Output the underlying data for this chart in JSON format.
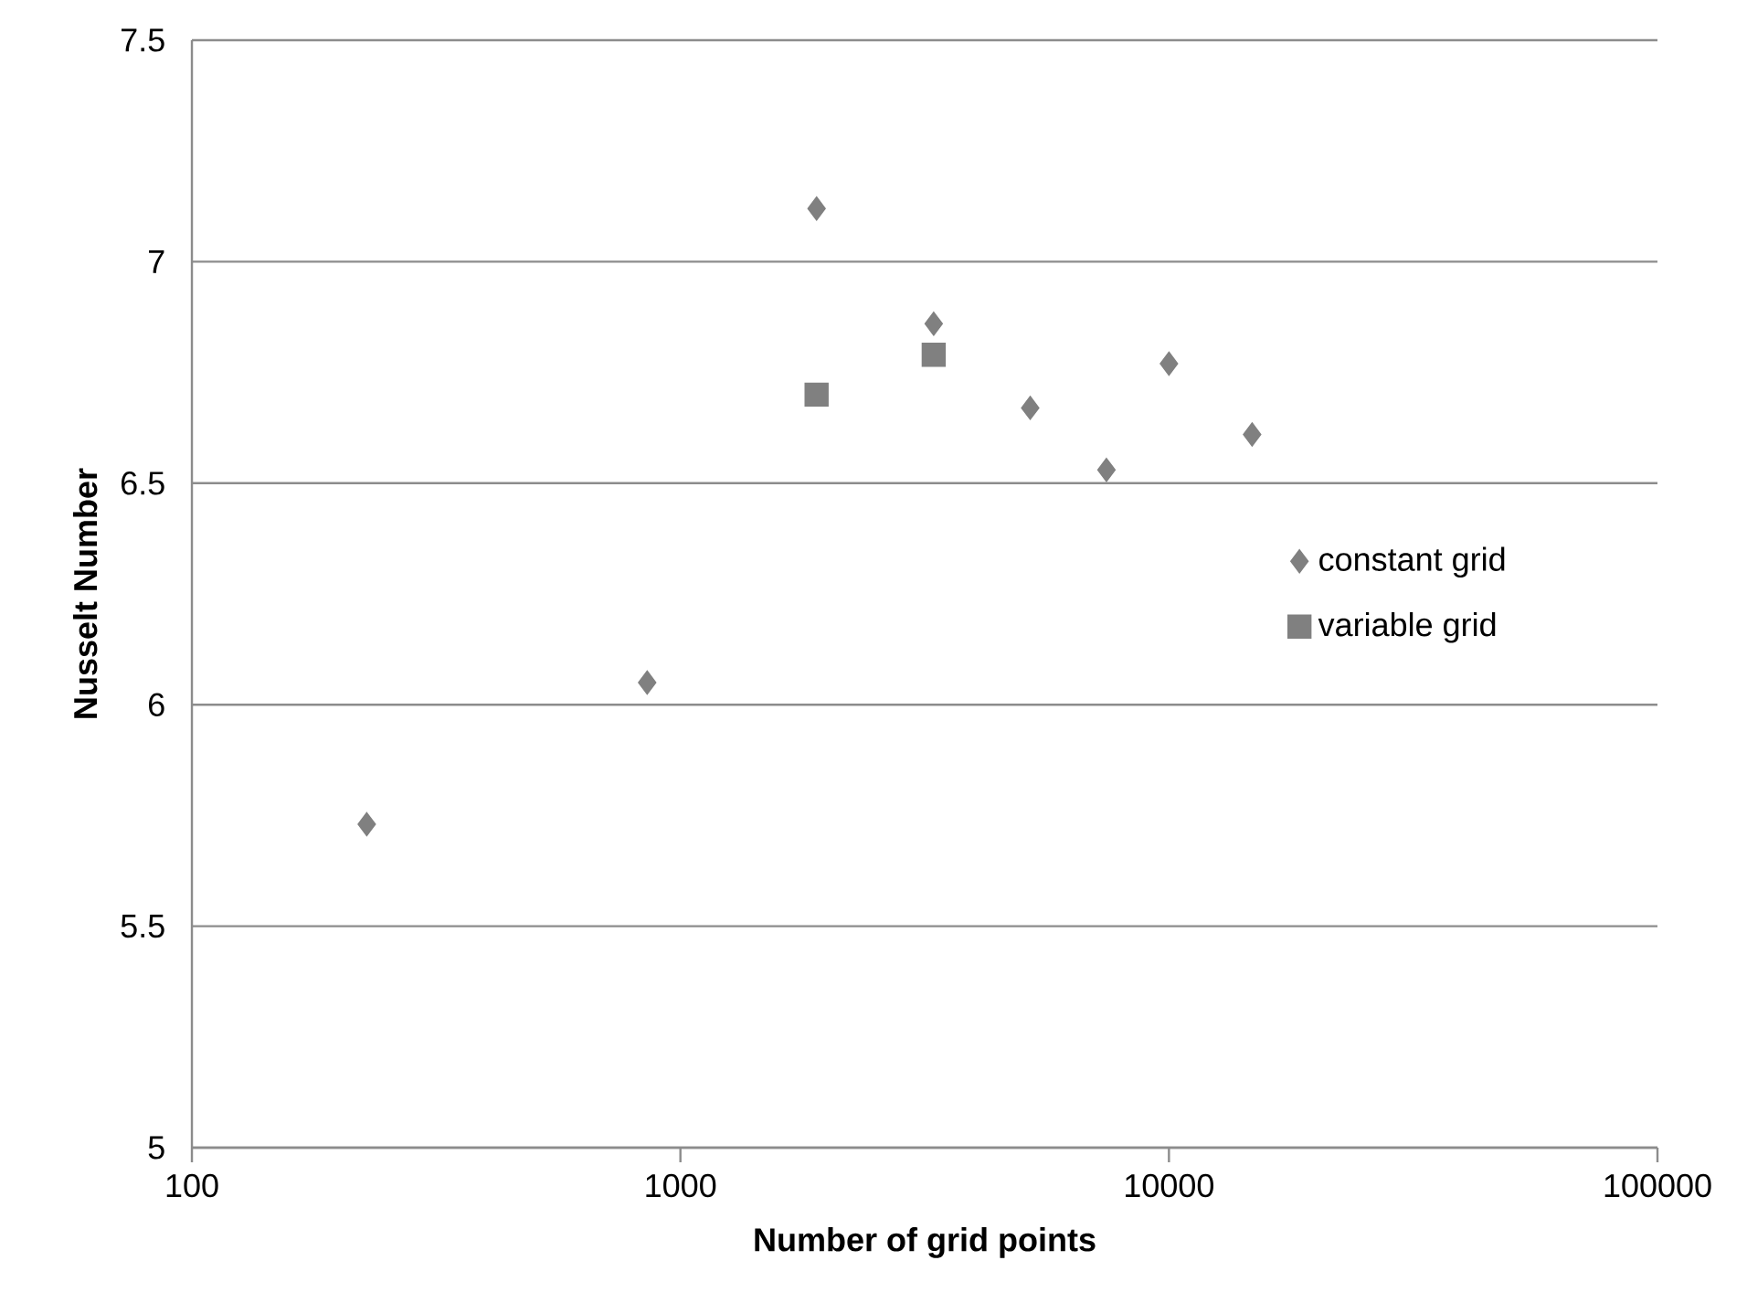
{
  "chart_data": {
    "type": "scatter",
    "xlabel": "Number of grid points",
    "ylabel": "Nusselt Number",
    "log": "x",
    "xlim": [
      100,
      100000
    ],
    "xticks": [
      100,
      1000,
      10000,
      100000
    ],
    "ylim": [
      5,
      7.5
    ],
    "yticks": [
      5,
      5.5,
      6,
      6.5,
      7,
      7.5
    ],
    "grid": "y",
    "legend": "right",
    "series": [
      {
        "name": "constant grid",
        "color": "#808080",
        "marker": "diamond",
        "x": [
          228,
          855,
          1900,
          3300,
          5200,
          7450,
          10000,
          14800
        ],
        "values": [
          5.73,
          6.05,
          7.12,
          6.86,
          6.67,
          6.53,
          6.77,
          6.61
        ]
      },
      {
        "name": "variable grid",
        "color": "#808080",
        "marker": "square",
        "x": [
          1900,
          3300
        ],
        "values": [
          6.7,
          6.79
        ]
      }
    ]
  }
}
